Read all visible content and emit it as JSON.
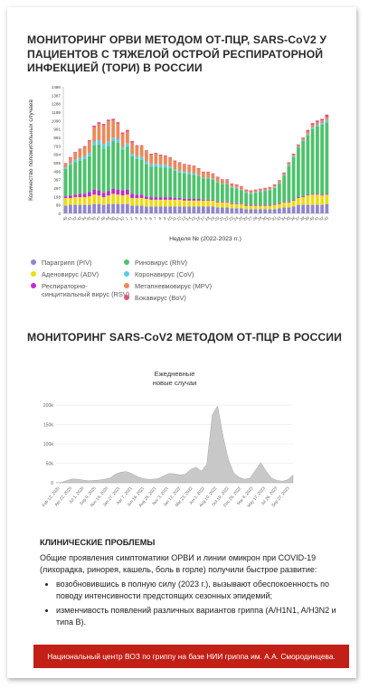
{
  "title1": "МОНИТОРИНГ ОРВИ МЕТОДОМ ОТ-ПЦР, SARS-CoV2 У ПАЦИЕНТОВ С ТЯЖЕЛОЙ ОСТРОЙ РЕСПИРАТОРНОЙ ИНФЕКЦИЕЙ (ТОРИ) В РОССИИ",
  "title2": "МОНИТОРИНГ SARS-CoV2 МЕТОДОМ ОТ-ПЦР В РОССИИ",
  "clinical": {
    "heading": "КЛИНИЧЕСКИЕ ПРОБЛЕМЫ",
    "intro": "Общие проявления симптоматики ОРВИ и линии омикрон при COVID-19 (лихорадка, ринорея, кашель, боль в горле) получили быстрое развитие:",
    "bullets": [
      "возобновившись в полную силу (2023 г.), вызывают обеспокоенность по поводу интенсивности предстоящих сезонных эпидемий;",
      "изменчивость появлений различных вариантов гриппа (A/H1N1, A/H3N2 и типа B)."
    ]
  },
  "footer": "Национальный центр ВОЗ по гриппу на базе НИИ гриппа им. А.А. Смородинцева.",
  "chart_data": [
    {
      "type": "bar",
      "stacked": true,
      "ylabel": "Количество положительных случаев",
      "xlabel": "Неделя № (2022-2023 гг.)",
      "yticks": [
        0,
        99,
        198,
        297,
        397,
        496,
        595,
        694,
        793,
        892,
        991,
        1090,
        1189,
        1288,
        1387,
        1486
      ],
      "ylim": [
        0,
        1486
      ],
      "categories": [
        "40",
        "41",
        "42",
        "43",
        "44",
        "45",
        "46",
        "47",
        "48",
        "49",
        "50",
        "51",
        "52",
        "1",
        "2",
        "3",
        "4",
        "5",
        "6",
        "7",
        "8",
        "9",
        "10",
        "11",
        "12",
        "13",
        "14",
        "15",
        "16",
        "17",
        "18",
        "19",
        "20",
        "21",
        "22",
        "23",
        "24",
        "25",
        "26",
        "27",
        "28",
        "29",
        "30",
        "31",
        "32",
        "33",
        "34",
        "35",
        "36",
        "37",
        "38",
        "39",
        "40",
        "41",
        "42",
        "43"
      ],
      "legend_position": "bottom",
      "series": [
        {
          "name": "Парагрипп (PIV)",
          "color": "#8f86cf",
          "values": [
            90,
            100,
            100,
            100,
            100,
            100,
            110,
            110,
            100,
            110,
            110,
            110,
            110,
            110,
            90,
            90,
            90,
            80,
            80,
            80,
            80,
            80,
            80,
            80,
            80,
            80,
            80,
            80,
            80,
            80,
            80,
            80,
            70,
            70,
            70,
            60,
            60,
            60,
            50,
            50,
            50,
            50,
            50,
            50,
            50,
            60,
            70,
            70,
            80,
            100,
            100,
            100,
            100,
            100,
            100,
            110
          ]
        },
        {
          "name": "Аденовирус (ADV)",
          "color": "#ecdc17",
          "values": [
            90,
            80,
            90,
            90,
            90,
            100,
            110,
            100,
            90,
            100,
            120,
            110,
            100,
            110,
            90,
            90,
            90,
            90,
            80,
            80,
            80,
            80,
            80,
            80,
            80,
            70,
            70,
            70,
            70,
            70,
            70,
            70,
            60,
            60,
            60,
            50,
            50,
            50,
            40,
            40,
            40,
            40,
            40,
            40,
            50,
            50,
            60,
            60,
            70,
            80,
            90,
            110,
            120,
            120,
            110,
            110
          ]
        },
        {
          "name": "Респираторно-синцитиальный вирус (RSV)",
          "color": "#c42bd2",
          "values": [
            20,
            30,
            30,
            40,
            40,
            50,
            60,
            60,
            50,
            50,
            60,
            60,
            60,
            60,
            50,
            40,
            40,
            30,
            30,
            30,
            30,
            30,
            30,
            20,
            20,
            20,
            20,
            20,
            20,
            10,
            10,
            10,
            10,
            10,
            10,
            10,
            10,
            10,
            10,
            10,
            10,
            10,
            10,
            10,
            10,
            10,
            10,
            10,
            10,
            10,
            10,
            10,
            10,
            10,
            10,
            10
          ]
        },
        {
          "name": "Риновирус (RhV)",
          "color": "#4ec26c",
          "values": [
            320,
            360,
            380,
            390,
            410,
            420,
            520,
            540,
            520,
            530,
            560,
            550,
            480,
            500,
            440,
            420,
            410,
            380,
            360,
            360,
            350,
            350,
            340,
            320,
            300,
            300,
            290,
            280,
            270,
            250,
            250,
            240,
            220,
            200,
            200,
            180,
            170,
            150,
            140,
            130,
            140,
            150,
            160,
            170,
            190,
            230,
            300,
            420,
            500,
            580,
            650,
            700,
            760,
            790,
            820,
            840
          ]
        },
        {
          "name": "Коронавирус (CoV)",
          "color": "#5bcde0",
          "values": [
            20,
            20,
            30,
            30,
            30,
            40,
            40,
            50,
            50,
            50,
            40,
            40,
            30,
            40,
            30,
            30,
            30,
            30,
            30,
            30,
            30,
            30,
            20,
            20,
            20,
            20,
            20,
            20,
            10,
            10,
            10,
            10,
            10,
            10,
            10,
            10,
            10,
            10,
            10,
            10,
            10,
            10,
            10,
            10,
            10,
            10,
            10,
            10,
            10,
            10,
            10,
            10,
            20,
            20,
            20,
            30
          ]
        },
        {
          "name": "Метапневмовирус (MPV)",
          "color": "#e98a5c",
          "values": [
            40,
            60,
            80,
            100,
            110,
            140,
            170,
            190,
            220,
            240,
            200,
            180,
            150,
            140,
            130,
            120,
            130,
            120,
            110,
            120,
            110,
            100,
            100,
            90,
            90,
            80,
            80,
            80,
            70,
            60,
            60,
            50,
            50,
            40,
            40,
            30,
            30,
            30,
            20,
            20,
            20,
            20,
            20,
            20,
            20,
            20,
            20,
            20,
            20,
            20,
            20,
            30,
            30,
            30,
            30,
            30
          ]
        },
        {
          "name": "Бокавирус (BoV)",
          "color": "#e6507a",
          "values": [
            10,
            10,
            10,
            10,
            10,
            10,
            20,
            20,
            20,
            20,
            20,
            20,
            20,
            20,
            20,
            10,
            10,
            10,
            10,
            10,
            10,
            10,
            10,
            10,
            10,
            10,
            10,
            10,
            10,
            10,
            10,
            10,
            10,
            10,
            10,
            10,
            10,
            10,
            10,
            10,
            10,
            10,
            10,
            10,
            10,
            10,
            10,
            10,
            10,
            10,
            10,
            20,
            20,
            20,
            20,
            30
          ]
        }
      ]
    },
    {
      "type": "area",
      "title": "Ежедневные новые случаи",
      "ylim": [
        0,
        200000
      ],
      "yticks_labels": [
        "0",
        "50k",
        "100k",
        "150k",
        "200k"
      ],
      "ytick_values": [
        0,
        50000,
        100000,
        150000,
        200000
      ],
      "xtick_labels": [
        "Feb 12, 2020",
        "Apr 22, 2020",
        "Jul 1, 2020",
        "Sep 9, 2020",
        "Nov 18, 2020",
        "Jan 27, 2021",
        "Apr 7, 2021",
        "Jun 16, 2021",
        "Aug 25, 2021",
        "Nov 3, 2021",
        "Jan 12, 2022",
        "Mar 23, 2022",
        "Jun 1, 2022",
        "Aug 10, 2022",
        "Oct 19, 2022",
        "Dec 28, 2022",
        "Mar 8, 2023",
        "May 17, 2023",
        "Jul 26, 2023",
        "Sep 27, 2023"
      ],
      "x_values": [
        0,
        3,
        6,
        9,
        12,
        15,
        18,
        21,
        24,
        27,
        30,
        33,
        36,
        39,
        42,
        45,
        48,
        51,
        54,
        57,
        60,
        63,
        66,
        69,
        72,
        75,
        78,
        81,
        84,
        87,
        90,
        93,
        96,
        99,
        102,
        105,
        108,
        111,
        114,
        117,
        120,
        123,
        126,
        129,
        132
      ],
      "values": [
        0,
        1000,
        6000,
        10000,
        9000,
        7000,
        5000,
        6000,
        7000,
        9000,
        12000,
        22000,
        27000,
        29000,
        24000,
        17000,
        11000,
        9000,
        9000,
        11000,
        18000,
        24000,
        23000,
        20000,
        22000,
        35000,
        40000,
        30000,
        48000,
        175000,
        198000,
        120000,
        60000,
        25000,
        14000,
        9000,
        12000,
        32000,
        52000,
        30000,
        12000,
        6000,
        4000,
        8000,
        20000
      ]
    }
  ]
}
